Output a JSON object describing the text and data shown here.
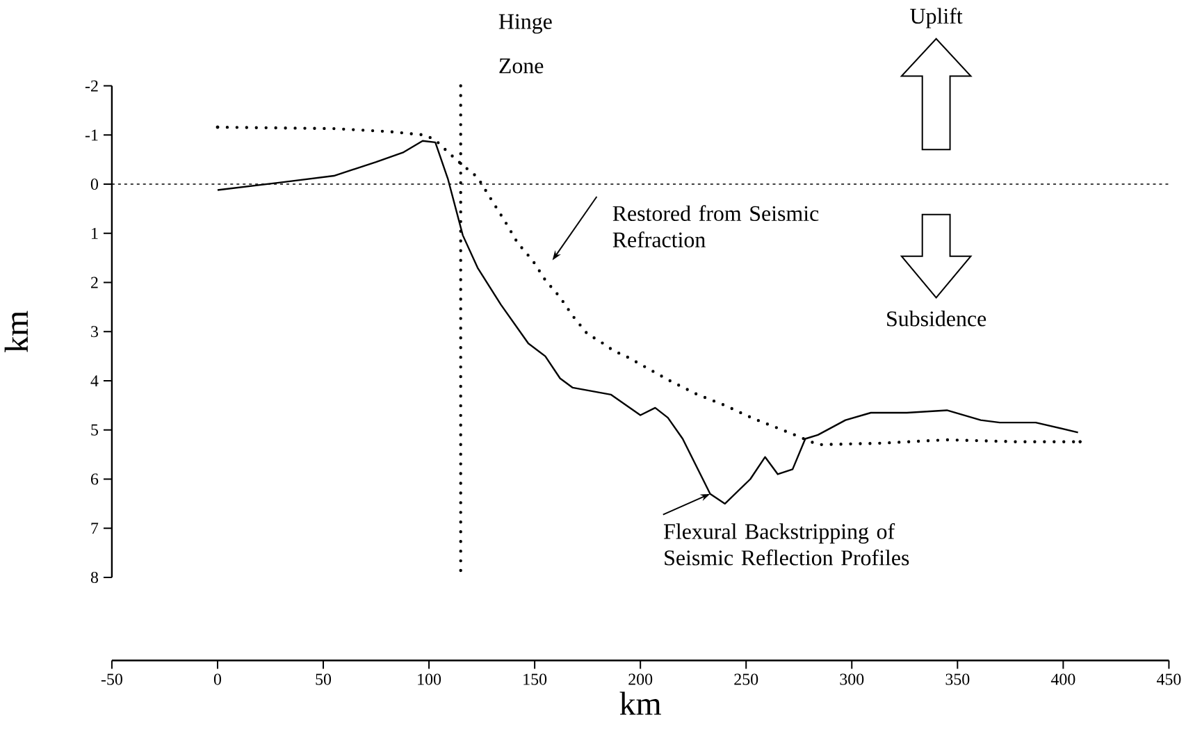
{
  "chart_data": {
    "type": "line",
    "xlabel": "km",
    "ylabel": "km",
    "xlim": [
      -50,
      450
    ],
    "xticks": [
      -50,
      0,
      50,
      100,
      150,
      200,
      250,
      300,
      350,
      400,
      450
    ],
    "ylim": [
      8,
      -2
    ],
    "yticks": [
      -2,
      -1,
      0,
      1,
      2,
      3,
      4,
      5,
      6,
      7,
      8
    ],
    "series": [
      {
        "color": "#000000",
        "line_style": "solid",
        "x": [
          0,
          29,
          55,
          75,
          88,
          97,
          103,
          109,
          116,
          123,
          134,
          147,
          155,
          162,
          168,
          186,
          200,
          207,
          213,
          220,
          233,
          240,
          252,
          259,
          265,
          272,
          278,
          284,
          297,
          309,
          326,
          345,
          361,
          370,
          387,
          407
        ],
        "values": [
          0.12,
          -0.03,
          -0.17,
          -0.45,
          -0.65,
          -0.88,
          -0.85,
          -0.1,
          1.04,
          1.7,
          2.45,
          3.24,
          3.5,
          3.95,
          4.14,
          4.28,
          4.7,
          4.55,
          4.75,
          5.18,
          6.3,
          6.5,
          6.0,
          5.55,
          5.9,
          5.8,
          5.18,
          5.1,
          4.8,
          4.65,
          4.65,
          4.6,
          4.8,
          4.85,
          4.85,
          5.05
        ]
      },
      {
        "color": "#000000",
        "line_style": "dotted",
        "x": [
          0,
          55,
          81,
          98,
          103,
          109,
          115,
          123,
          129,
          136,
          142,
          149,
          155,
          162,
          168,
          175,
          181,
          187,
          194,
          214,
          227,
          240,
          253,
          266,
          273,
          284,
          313,
          345,
          378,
          408
        ],
        "values": [
          -1.16,
          -1.13,
          -1.07,
          -1.0,
          -0.9,
          -0.65,
          -0.42,
          -0.14,
          0.28,
          0.76,
          1.2,
          1.55,
          1.95,
          2.3,
          2.68,
          3.05,
          3.2,
          3.38,
          3.52,
          4.0,
          4.28,
          4.5,
          4.76,
          4.98,
          5.1,
          5.3,
          5.27,
          5.2,
          5.24,
          5.24
        ]
      }
    ],
    "ref_lines": [
      {
        "axis": "x",
        "value": 115,
        "label": "Hinge Zone",
        "line_style": "dotted"
      },
      {
        "axis": "y",
        "value": 0,
        "line_style": "dashed"
      }
    ],
    "annotations": [
      "Restored from Seismic Refraction",
      {
        "text": "Flexural Backstripping of Seismic Reflection Profiles",
        "x": 233,
        "y": 6.3
      },
      "Uplift",
      "Subsidence"
    ],
    "grid": false,
    "legend": false,
    "marker": "none"
  }
}
